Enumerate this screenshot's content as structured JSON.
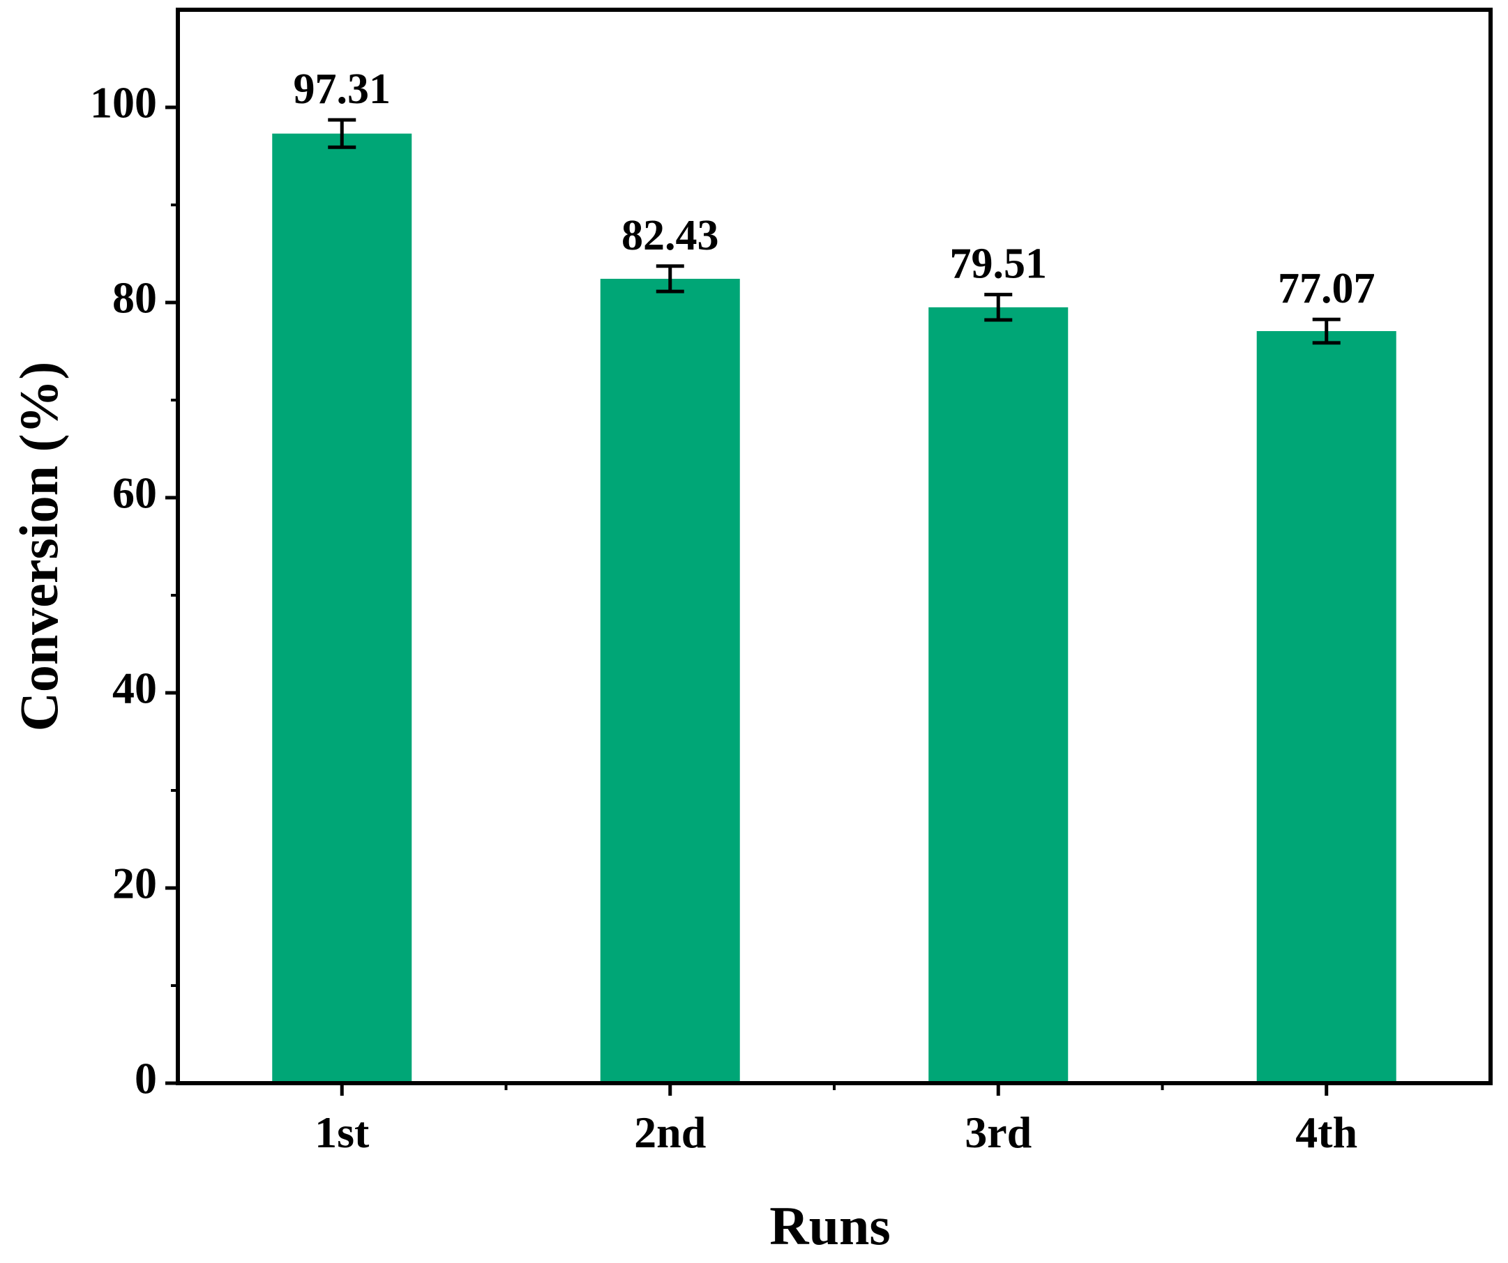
{
  "chart_data": {
    "type": "bar",
    "xlabel": "Runs",
    "ylabel": "Conversion (%)",
    "categories": [
      "1st",
      "2nd",
      "3rd",
      "4th"
    ],
    "values": [
      97.31,
      82.43,
      79.51,
      77.07
    ],
    "errors": [
      1.4,
      1.3,
      1.3,
      1.2
    ],
    "color": "#00a676",
    "ylim": [
      0,
      110
    ],
    "yticks": [
      0,
      20,
      40,
      60,
      80,
      100
    ],
    "grid": false
  }
}
